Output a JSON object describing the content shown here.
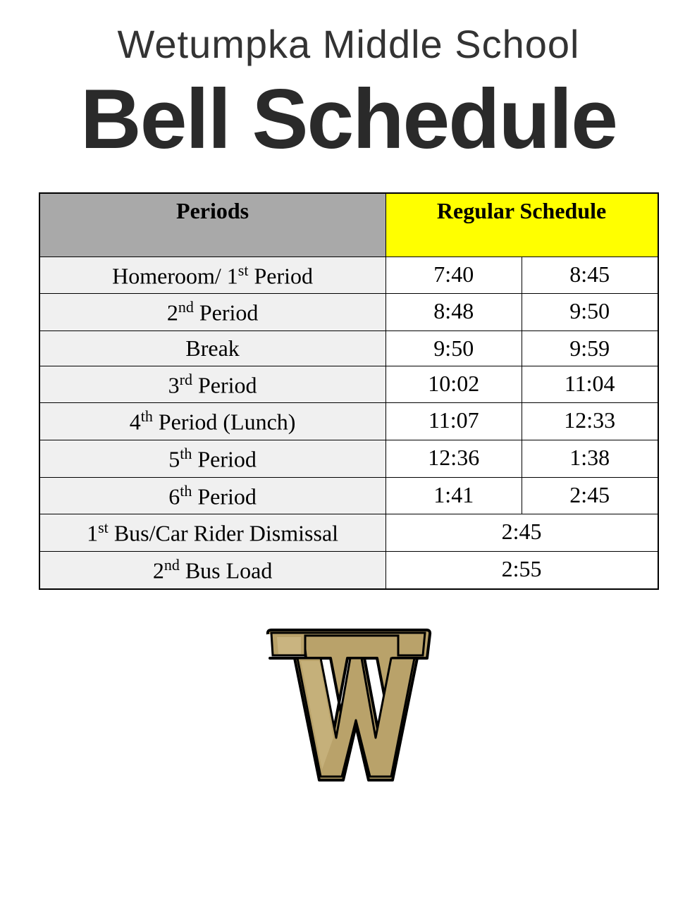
{
  "header": {
    "subtitle": "Wetumpka Middle School",
    "title": "Bell Schedule"
  },
  "table": {
    "columns": {
      "periods": "Periods",
      "schedule": "Regular Schedule"
    },
    "header_colors": {
      "periods_bg": "#a9a9a9",
      "schedule_bg": "#ffff00",
      "text": "#000000"
    },
    "row_colors": {
      "period_bg": "#f0f0f0",
      "time_bg": "#ffffff",
      "border": "#000000"
    },
    "rows": [
      {
        "period_prefix": "Homeroom/ 1",
        "period_ordinal": "st",
        "period_suffix": " Period",
        "start": "7:40",
        "end": "8:45",
        "span": false
      },
      {
        "period_prefix": "2",
        "period_ordinal": "nd",
        "period_suffix": " Period",
        "start": "8:48",
        "end": "9:50",
        "span": false
      },
      {
        "period_prefix": "Break",
        "period_ordinal": "",
        "period_suffix": "",
        "start": "9:50",
        "end": "9:59",
        "span": false
      },
      {
        "period_prefix": "3",
        "period_ordinal": "rd",
        "period_suffix": " Period",
        "start": "10:02",
        "end": "11:04",
        "span": false
      },
      {
        "period_prefix": "4",
        "period_ordinal": "th",
        "period_suffix": " Period (Lunch)",
        "start": "11:07",
        "end": "12:33",
        "span": false
      },
      {
        "period_prefix": "5",
        "period_ordinal": "th",
        "period_suffix": " Period",
        "start": "12:36",
        "end": "1:38",
        "span": false
      },
      {
        "period_prefix": "6",
        "period_ordinal": "th",
        "period_suffix": " Period",
        "start": "1:41",
        "end": "2:45",
        "span": false
      },
      {
        "period_prefix": "1",
        "period_ordinal": "st",
        "period_suffix": " Bus/Car Rider Dismissal",
        "time": "2:45",
        "span": true
      },
      {
        "period_prefix": "2",
        "period_ordinal": "nd",
        "period_suffix": " Bus Load",
        "time": "2:55",
        "span": true
      }
    ]
  },
  "logo": {
    "letter": "W",
    "fill_color": "#b9a26a",
    "stroke_color": "#000000",
    "outline_color": "#ffffff"
  }
}
